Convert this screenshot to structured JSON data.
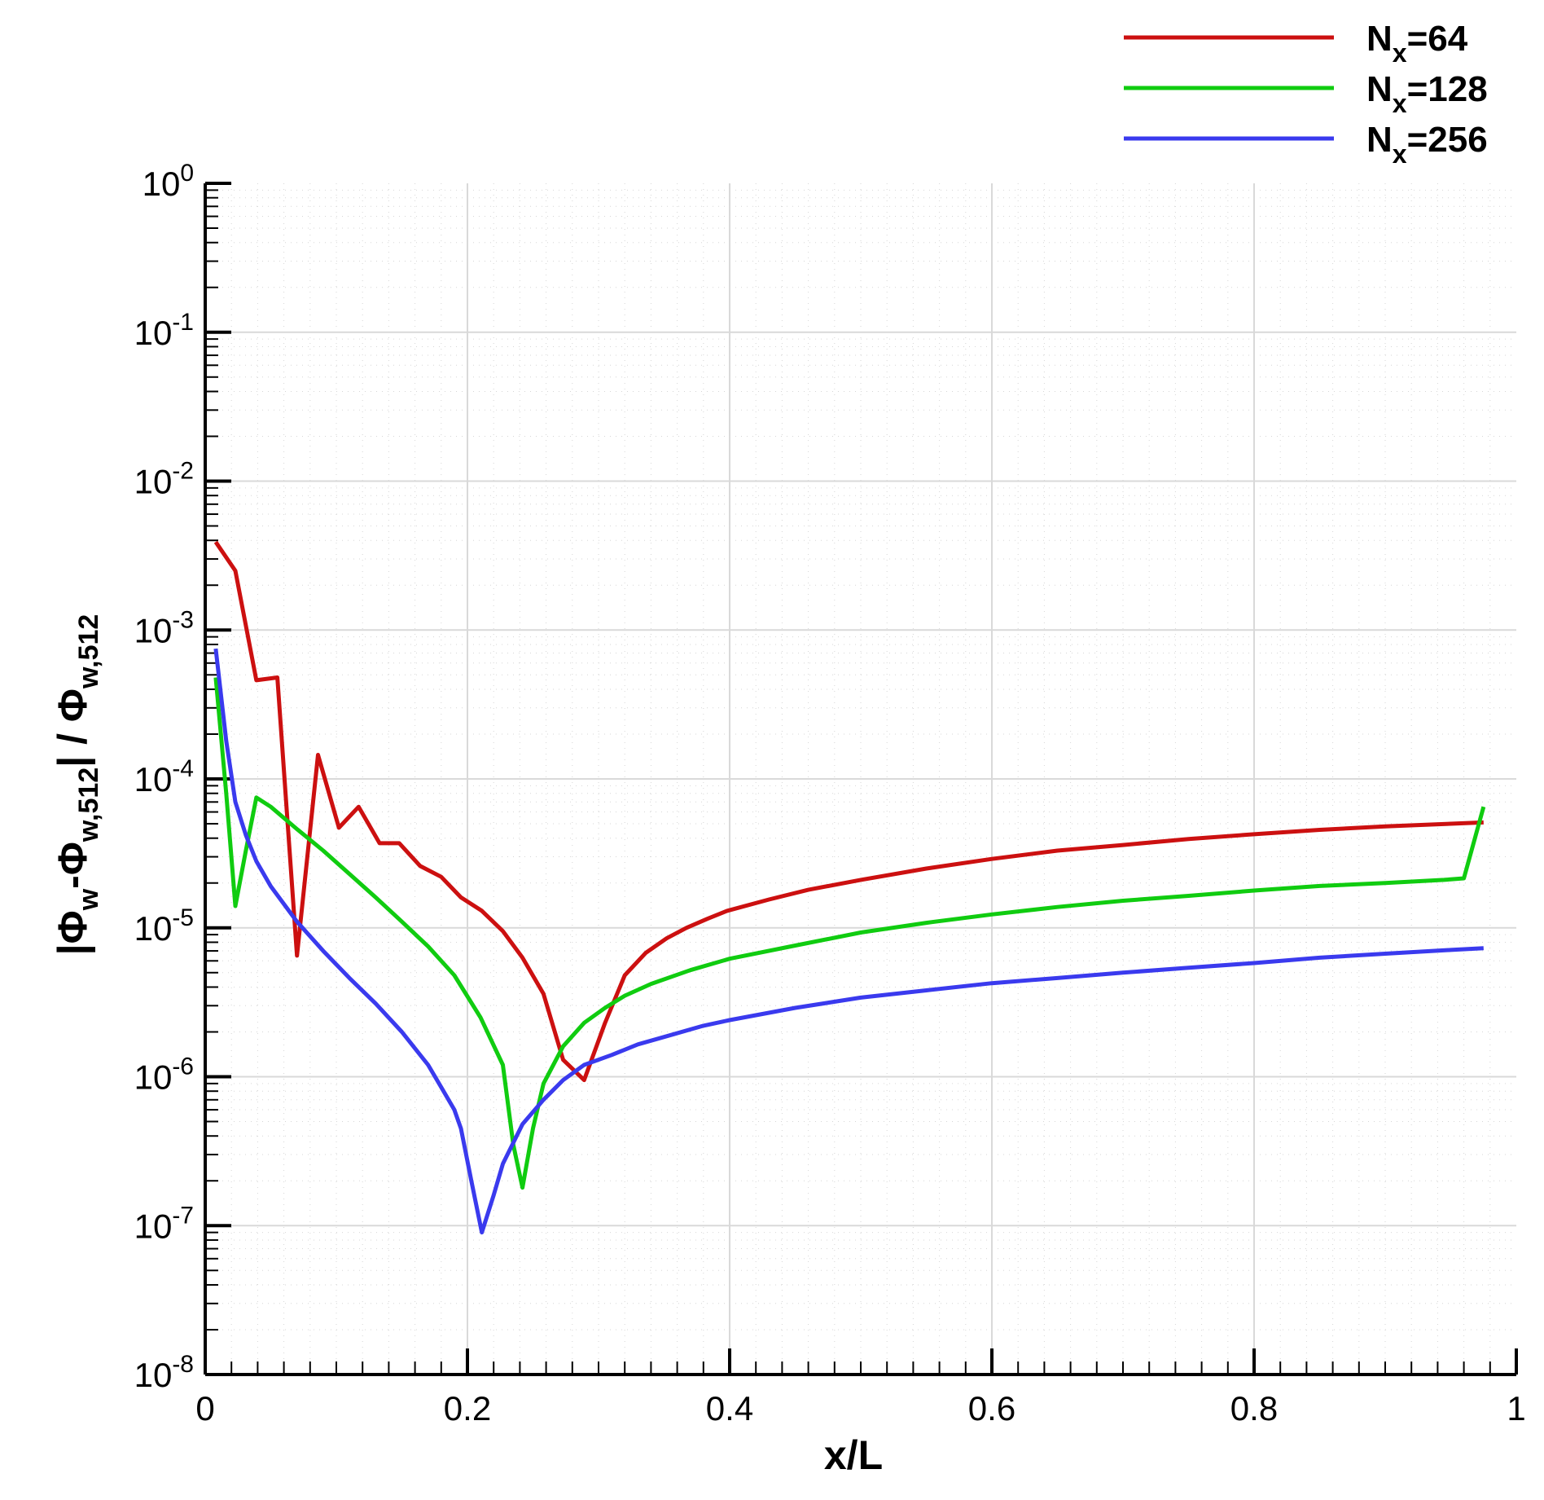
{
  "chart_data": {
    "type": "line",
    "xlabel": "x/L",
    "ylabel": {
      "open": "|Φ",
      "sub1": "w",
      "mid": "-Φ",
      "sub2": "w,512",
      "close": "| / Φ",
      "sub3": "w,512"
    },
    "xlim": [
      0,
      1
    ],
    "ylim": [
      1e-08,
      1
    ],
    "yscale": "log",
    "grid": true,
    "legend_position": "top-right",
    "x_ticks": [
      "0",
      "0.2",
      "0.4",
      "0.6",
      "0.8",
      "1"
    ],
    "y_ticks": [
      {
        "base": "10",
        "exp": "0"
      },
      {
        "base": "10",
        "exp": "-1"
      },
      {
        "base": "10",
        "exp": "-2"
      },
      {
        "base": "10",
        "exp": "-3"
      },
      {
        "base": "10",
        "exp": "-4"
      },
      {
        "base": "10",
        "exp": "-5"
      },
      {
        "base": "10",
        "exp": "-6"
      },
      {
        "base": "10",
        "exp": "-7"
      },
      {
        "base": "10",
        "exp": "-8"
      }
    ],
    "series": [
      {
        "name": "N_x=64",
        "legend": {
          "base": "N",
          "sub": "x",
          "rest": "=64"
        },
        "color": "#cc1010",
        "points": [
          [
            0.008,
            0.0039
          ],
          [
            0.023,
            0.0025
          ],
          [
            0.039,
            0.00046
          ],
          [
            0.055,
            0.00048
          ],
          [
            0.07,
            6.5e-06
          ],
          [
            0.086,
            0.000145
          ],
          [
            0.102,
            4.7e-05
          ],
          [
            0.117,
            6.5e-05
          ],
          [
            0.133,
            3.7e-05
          ],
          [
            0.148,
            3.7e-05
          ],
          [
            0.164,
            2.6e-05
          ],
          [
            0.18,
            2.2e-05
          ],
          [
            0.195,
            1.6e-05
          ],
          [
            0.211,
            1.3e-05
          ],
          [
            0.227,
            9.5e-06
          ],
          [
            0.242,
            6.3e-06
          ],
          [
            0.258,
            3.6e-06
          ],
          [
            0.273,
            1.3e-06
          ],
          [
            0.289,
            9.5e-07
          ],
          [
            0.305,
            2.3e-06
          ],
          [
            0.32,
            4.8e-06
          ],
          [
            0.336,
            6.8e-06
          ],
          [
            0.352,
            8.5e-06
          ],
          [
            0.367,
            1e-05
          ],
          [
            0.383,
            1.15e-05
          ],
          [
            0.398,
            1.3e-05
          ],
          [
            0.43,
            1.55e-05
          ],
          [
            0.46,
            1.8e-05
          ],
          [
            0.5,
            2.1e-05
          ],
          [
            0.55,
            2.5e-05
          ],
          [
            0.6,
            2.9e-05
          ],
          [
            0.65,
            3.3e-05
          ],
          [
            0.7,
            3.6e-05
          ],
          [
            0.75,
            3.95e-05
          ],
          [
            0.8,
            4.25e-05
          ],
          [
            0.85,
            4.55e-05
          ],
          [
            0.9,
            4.8e-05
          ],
          [
            0.95,
            5e-05
          ],
          [
            0.975,
            5.1e-05
          ]
        ]
      },
      {
        "name": "N_x=128",
        "legend": {
          "base": "N",
          "sub": "x",
          "rest": "=128"
        },
        "color": "#10cc10",
        "points": [
          [
            0.008,
            0.00048
          ],
          [
            0.016,
            8e-05
          ],
          [
            0.023,
            1.4e-05
          ],
          [
            0.031,
            3.3e-05
          ],
          [
            0.039,
            7.5e-05
          ],
          [
            0.05,
            6.5e-05
          ],
          [
            0.07,
            4.6e-05
          ],
          [
            0.09,
            3.3e-05
          ],
          [
            0.11,
            2.3e-05
          ],
          [
            0.13,
            1.6e-05
          ],
          [
            0.15,
            1.1e-05
          ],
          [
            0.17,
            7.5e-06
          ],
          [
            0.19,
            4.8e-06
          ],
          [
            0.21,
            2.5e-06
          ],
          [
            0.227,
            1.2e-06
          ],
          [
            0.235,
            3.5e-07
          ],
          [
            0.242,
            1.8e-07
          ],
          [
            0.25,
            4.5e-07
          ],
          [
            0.258,
            9e-07
          ],
          [
            0.273,
            1.6e-06
          ],
          [
            0.289,
            2.3e-06
          ],
          [
            0.305,
            2.9e-06
          ],
          [
            0.32,
            3.5e-06
          ],
          [
            0.34,
            4.2e-06
          ],
          [
            0.37,
            5.2e-06
          ],
          [
            0.4,
            6.2e-06
          ],
          [
            0.45,
            7.6e-06
          ],
          [
            0.5,
            9.3e-06
          ],
          [
            0.55,
            1.08e-05
          ],
          [
            0.6,
            1.23e-05
          ],
          [
            0.65,
            1.38e-05
          ],
          [
            0.7,
            1.52e-05
          ],
          [
            0.75,
            1.64e-05
          ],
          [
            0.8,
            1.78e-05
          ],
          [
            0.85,
            1.91e-05
          ],
          [
            0.9,
            2e-05
          ],
          [
            0.945,
            2.1e-05
          ],
          [
            0.96,
            2.15e-05
          ],
          [
            0.975,
            6.5e-05
          ]
        ]
      },
      {
        "name": "N_x=256",
        "legend": {
          "base": "N",
          "sub": "x",
          "rest": "=256"
        },
        "color": "#3a3aee",
        "points": [
          [
            0.008,
            0.00075
          ],
          [
            0.016,
            0.00018
          ],
          [
            0.023,
            7e-05
          ],
          [
            0.031,
            4.2e-05
          ],
          [
            0.039,
            2.8e-05
          ],
          [
            0.05,
            1.9e-05
          ],
          [
            0.07,
            1.1e-05
          ],
          [
            0.09,
            7e-06
          ],
          [
            0.11,
            4.6e-06
          ],
          [
            0.13,
            3.1e-06
          ],
          [
            0.15,
            2e-06
          ],
          [
            0.17,
            1.2e-06
          ],
          [
            0.18,
            8.5e-07
          ],
          [
            0.19,
            6e-07
          ],
          [
            0.195,
            4.5e-07
          ],
          [
            0.203,
            2e-07
          ],
          [
            0.211,
            9e-08
          ],
          [
            0.22,
            1.6e-07
          ],
          [
            0.227,
            2.6e-07
          ],
          [
            0.242,
            4.8e-07
          ],
          [
            0.258,
            7e-07
          ],
          [
            0.273,
            9.5e-07
          ],
          [
            0.289,
            1.2e-06
          ],
          [
            0.31,
            1.4e-06
          ],
          [
            0.33,
            1.65e-06
          ],
          [
            0.35,
            1.85e-06
          ],
          [
            0.38,
            2.2e-06
          ],
          [
            0.4,
            2.4e-06
          ],
          [
            0.45,
            2.9e-06
          ],
          [
            0.5,
            3.4e-06
          ],
          [
            0.55,
            3.8e-06
          ],
          [
            0.6,
            4.25e-06
          ],
          [
            0.65,
            4.6e-06
          ],
          [
            0.7,
            5e-06
          ],
          [
            0.75,
            5.4e-06
          ],
          [
            0.8,
            5.8e-06
          ],
          [
            0.85,
            6.3e-06
          ],
          [
            0.9,
            6.7e-06
          ],
          [
            0.95,
            7.1e-06
          ],
          [
            0.975,
            7.3e-06
          ]
        ]
      }
    ]
  }
}
